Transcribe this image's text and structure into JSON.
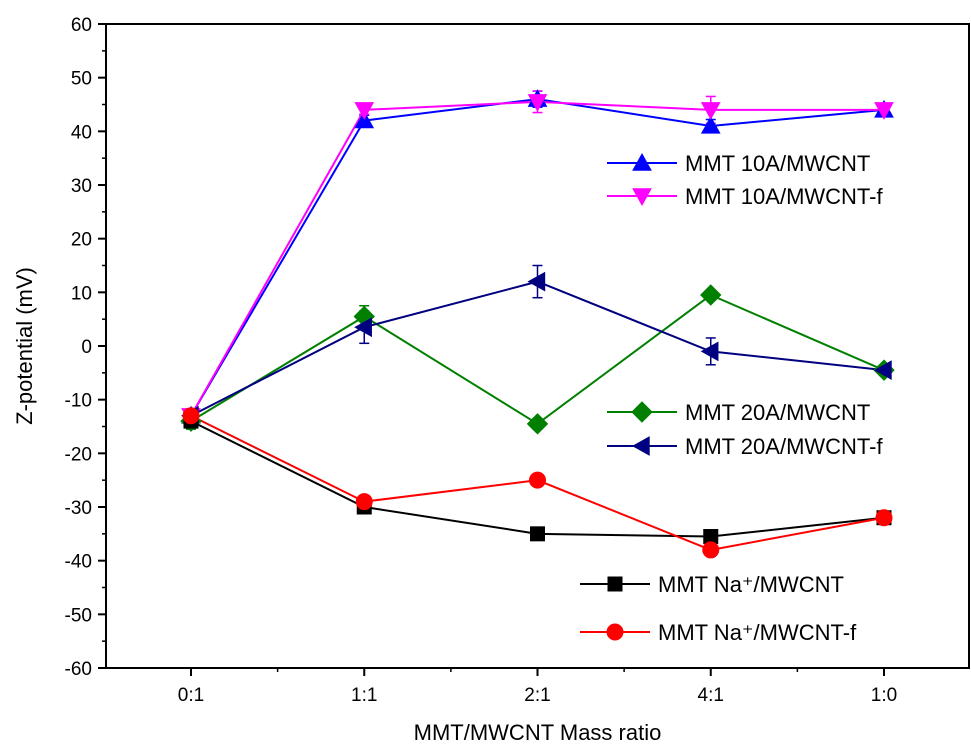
{
  "chart_data": {
    "type": "line",
    "xlabel": "MMT/MWCNT Mass ratio",
    "ylabel": "Z-potential (mV)",
    "categories": [
      "0:1",
      "1:1",
      "2:1",
      "4:1",
      "1:0"
    ],
    "ylim": [
      -60,
      60
    ],
    "y_major_step": 10,
    "grid": false,
    "legend_groups": [
      "upper-right",
      "middle-right",
      "lower-right"
    ],
    "series": [
      {
        "name": "MMT 10A/MWCNT",
        "color": "#0000FF",
        "marker": "triangle-up",
        "values": [
          -13,
          42,
          46,
          41,
          44
        ],
        "errors": [
          1,
          1,
          1.5,
          1.2,
          0.8
        ]
      },
      {
        "name": "MMT 10A/MWCNT-f",
        "color": "#FF00FF",
        "marker": "triangle-down",
        "values": [
          -13,
          44,
          45.5,
          44,
          44
        ],
        "errors": [
          1,
          0.8,
          2,
          2.5,
          0.8
        ]
      },
      {
        "name": "MMT 20A/MWCNT",
        "color": "#008000",
        "marker": "diamond",
        "values": [
          -14,
          5.5,
          -14.5,
          9.5,
          -4.5
        ],
        "errors": [
          1.5,
          2,
          1,
          0.5,
          0.5
        ]
      },
      {
        "name": "MMT 20A/MWCNT-f",
        "color": "#000080",
        "marker": "triangle-left",
        "values": [
          -13,
          3.5,
          12,
          -1,
          -4.5
        ],
        "errors": [
          1,
          3,
          3,
          2.5,
          0.5
        ]
      },
      {
        "name": "MMT Na⁺/MWCNT",
        "color": "#000000",
        "marker": "square",
        "values": [
          -14,
          -30,
          -35,
          -35.5,
          -32
        ],
        "errors": [
          0.5,
          0.5,
          0.5,
          0.5,
          0.5
        ]
      },
      {
        "name": "MMT Na⁺/MWCNT-f",
        "color": "#FF0000",
        "marker": "circle",
        "values": [
          -13,
          -29,
          -25,
          -38,
          -32
        ],
        "errors": [
          0.5,
          0.8,
          1,
          1,
          0.5
        ]
      }
    ]
  }
}
